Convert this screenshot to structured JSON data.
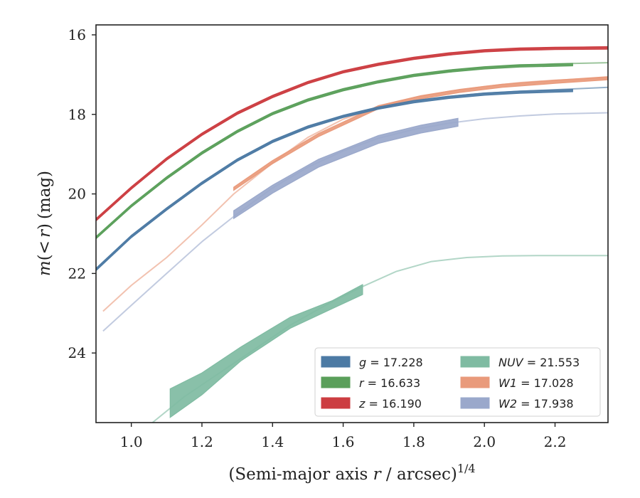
{
  "chart_data": {
    "type": "line",
    "xlabel": "(Semi-major axis r / arcsec)",
    "xlabel_parts": {
      "prefix": "(Semi-major axis ",
      "var": "r",
      "suffix": " / arcsec)",
      "exponent": "1/4"
    },
    "ylabel": "m(< r) (mag)",
    "ylabel_parts": {
      "var": "m",
      "open": "(",
      "lt": "<",
      "r": "r",
      "close": ")",
      "unit": "(mag)"
    },
    "xlim": [
      0.9,
      2.35
    ],
    "ylim": [
      25.75,
      15.75
    ],
    "y_inverted": true,
    "x_ticks": [
      "1.0",
      "1.2",
      "1.4",
      "1.6",
      "1.8",
      "2.0",
      "2.2"
    ],
    "y_ticks": [
      "16",
      "18",
      "20",
      "22",
      "24"
    ],
    "grid": false,
    "legend_position": "lower-right",
    "legend_entries": [
      {
        "label": "g = 17.228",
        "var": "g",
        "value": "17.228",
        "color": "#4c7aa4"
      },
      {
        "label": "r = 16.633",
        "var": "r",
        "value": "16.633",
        "color": "#5a9f5a"
      },
      {
        "label": "z = 16.190",
        "var": "z",
        "value": "16.190",
        "color": "#cc3d41"
      },
      {
        "label": "NUV = 21.553",
        "var": "NUV",
        "value": "21.553",
        "color": "#7fbba2"
      },
      {
        "label": "W1 = 17.028",
        "var": "W1",
        "value": "17.028",
        "color": "#e99a7b"
      },
      {
        "label": "W2 = 17.938",
        "var": "W2",
        "value": "17.938",
        "color": "#9aa8cb"
      }
    ],
    "series": [
      {
        "name": "g = 17.228",
        "color": "#4c7aa4",
        "model": {
          "x": [
            0.9,
            1.0,
            1.1,
            1.2,
            1.3,
            1.4,
            1.5,
            1.6,
            1.7,
            1.8,
            1.9,
            2.0,
            2.1,
            2.2,
            2.35
          ],
          "y": [
            21.9,
            21.07,
            20.38,
            19.73,
            19.15,
            18.68,
            18.32,
            18.05,
            17.84,
            17.67,
            17.55,
            17.47,
            17.42,
            17.38,
            17.32
          ]
        },
        "observed": {
          "x": [
            0.9,
            1.0,
            1.1,
            1.2,
            1.3,
            1.4,
            1.5,
            1.6,
            1.7,
            1.8,
            1.9,
            2.0,
            2.1,
            2.25
          ],
          "y": [
            21.9,
            21.07,
            20.38,
            19.73,
            19.15,
            18.68,
            18.32,
            18.05,
            17.84,
            17.68,
            17.57,
            17.49,
            17.44,
            17.4
          ],
          "err": 0.03
        }
      },
      {
        "name": "r = 16.633",
        "color": "#5a9f5a",
        "model": {
          "x": [
            0.9,
            1.0,
            1.1,
            1.2,
            1.3,
            1.4,
            1.5,
            1.6,
            1.7,
            1.8,
            1.9,
            2.0,
            2.1,
            2.2,
            2.35
          ],
          "y": [
            21.1,
            20.3,
            19.6,
            18.97,
            18.43,
            17.98,
            17.64,
            17.38,
            17.18,
            17.02,
            16.91,
            16.82,
            16.77,
            16.73,
            16.7
          ]
        },
        "observed": {
          "x": [
            0.9,
            1.0,
            1.1,
            1.2,
            1.3,
            1.4,
            1.5,
            1.6,
            1.7,
            1.8,
            1.9,
            2.0,
            2.1,
            2.25
          ],
          "y": [
            21.1,
            20.3,
            19.6,
            18.97,
            18.43,
            17.98,
            17.64,
            17.38,
            17.18,
            17.02,
            16.91,
            16.83,
            16.78,
            16.75
          ],
          "err": 0.03
        }
      },
      {
        "name": "z = 16.190",
        "color": "#cc3d41",
        "model": {
          "x": [
            0.9,
            1.0,
            1.1,
            1.2,
            1.3,
            1.4,
            1.5,
            1.6,
            1.7,
            1.8,
            1.9,
            2.0,
            2.1,
            2.2,
            2.35
          ],
          "y": [
            20.65,
            19.85,
            19.12,
            18.5,
            17.97,
            17.55,
            17.2,
            16.93,
            16.74,
            16.59,
            16.48,
            16.4,
            16.36,
            16.33,
            16.3
          ]
        },
        "observed": {
          "x": [
            0.9,
            1.0,
            1.1,
            1.2,
            1.3,
            1.4,
            1.5,
            1.6,
            1.7,
            1.8,
            1.9,
            2.0,
            2.1,
            2.2,
            2.35
          ],
          "y": [
            20.65,
            19.85,
            19.12,
            18.5,
            17.97,
            17.55,
            17.2,
            16.93,
            16.74,
            16.59,
            16.48,
            16.4,
            16.36,
            16.34,
            16.33
          ],
          "err": 0.03
        }
      },
      {
        "name": "NUV = 21.553",
        "color": "#7fbba2",
        "model": {
          "x": [
            1.06,
            1.15,
            1.25,
            1.35,
            1.45,
            1.55,
            1.65,
            1.75,
            1.85,
            1.95,
            2.05,
            2.15,
            2.25,
            2.35
          ],
          "y": [
            25.75,
            25.1,
            24.5,
            23.9,
            23.3,
            22.8,
            22.35,
            21.95,
            21.7,
            21.6,
            21.56,
            21.55,
            21.55,
            21.55
          ]
        },
        "observed": {
          "x": [
            1.11,
            1.2,
            1.31,
            1.45,
            1.57,
            1.655
          ],
          "ylo": [
            24.9,
            24.5,
            23.85,
            23.1,
            22.68,
            22.28
          ],
          "yhi": [
            25.62,
            25.05,
            24.2,
            23.38,
            22.88,
            22.53
          ]
        }
      },
      {
        "name": "W1 = 17.028",
        "color": "#e99a7b",
        "model": {
          "x": [
            0.92,
            1.0,
            1.1,
            1.2,
            1.29,
            1.4,
            1.5,
            1.6,
            1.7,
            1.8,
            1.9,
            2.0,
            2.1,
            2.2,
            2.35
          ],
          "y": [
            22.95,
            22.3,
            21.6,
            20.78,
            20.0,
            19.22,
            18.58,
            18.12,
            17.82,
            17.58,
            17.42,
            17.3,
            17.2,
            17.14,
            17.08
          ]
        },
        "observed": {
          "x": [
            1.29,
            1.4,
            1.53,
            1.7,
            1.82,
            1.93,
            2.05,
            2.2,
            2.35
          ],
          "y": [
            19.87,
            19.2,
            18.52,
            17.82,
            17.57,
            17.41,
            17.28,
            17.18,
            17.09
          ],
          "err": 0.04
        }
      },
      {
        "name": "W2 = 17.938",
        "color": "#9aa8cb",
        "model": {
          "x": [
            0.92,
            1.0,
            1.1,
            1.2,
            1.3,
            1.4,
            1.5,
            1.6,
            1.7,
            1.8,
            1.9,
            2.0,
            2.1,
            2.2,
            2.35
          ],
          "y": [
            23.45,
            22.8,
            22.0,
            21.2,
            20.5,
            19.85,
            19.33,
            18.92,
            18.6,
            18.38,
            18.22,
            18.11,
            18.04,
            17.99,
            17.96
          ]
        },
        "observed": {
          "x": [
            1.29,
            1.4,
            1.53,
            1.7,
            1.82,
            1.925
          ],
          "y": [
            20.52,
            19.88,
            19.23,
            18.63,
            18.37,
            18.2
          ],
          "err": 0.1
        }
      }
    ]
  }
}
